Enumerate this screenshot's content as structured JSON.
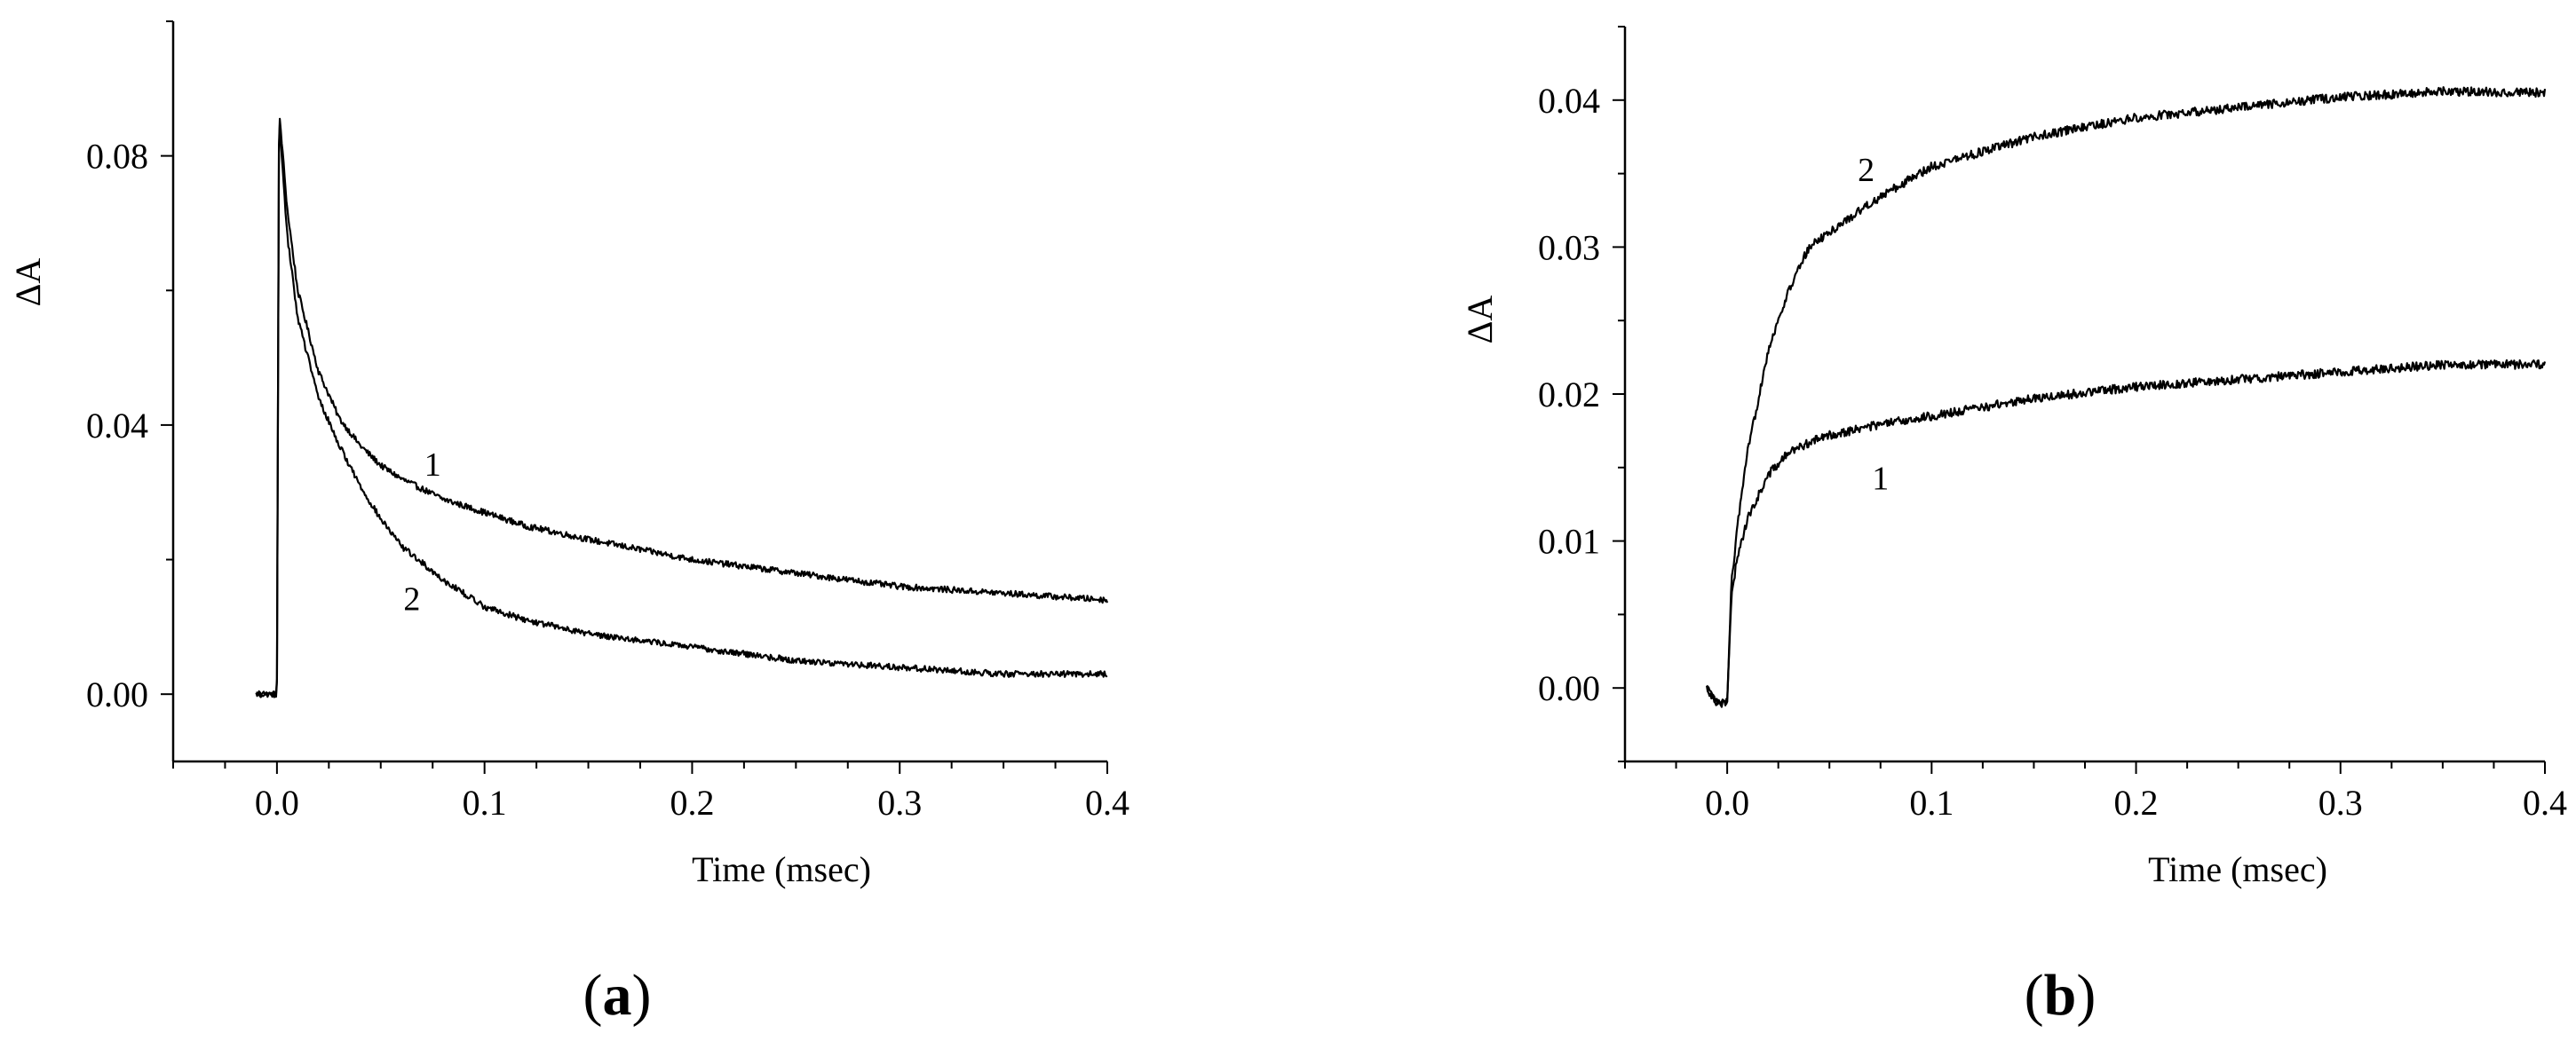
{
  "chart_data": [
    {
      "type": "line",
      "panel_label": "a",
      "xlabel": "Time (msec)",
      "ylabel": "ΔA",
      "xlim": [
        -0.05,
        0.4
      ],
      "ylim": [
        -0.01,
        0.1
      ],
      "xticks": [
        "0.0",
        "0.1",
        "0.2",
        "0.3",
        "0.4"
      ],
      "yticks": [
        "0.00",
        "0.04",
        "0.08"
      ],
      "series": [
        {
          "name": "1",
          "x": [
            -0.01,
            -0.001,
            0.0,
            0.001,
            0.005,
            0.01,
            0.02,
            0.03,
            0.04,
            0.05,
            0.06,
            0.08,
            0.1,
            0.12,
            0.15,
            0.2,
            0.25,
            0.3,
            0.35,
            0.4
          ],
          "values": [
            0.0,
            0.0,
            0.0,
            0.087,
            0.072,
            0.06,
            0.048,
            0.041,
            0.037,
            0.034,
            0.032,
            0.029,
            0.027,
            0.025,
            0.023,
            0.02,
            0.018,
            0.016,
            0.015,
            0.014
          ]
        },
        {
          "name": "2",
          "x": [
            -0.01,
            -0.001,
            0.0,
            0.001,
            0.005,
            0.01,
            0.02,
            0.03,
            0.04,
            0.05,
            0.06,
            0.08,
            0.1,
            0.12,
            0.15,
            0.2,
            0.25,
            0.3,
            0.35,
            0.4
          ],
          "values": [
            0.0,
            0.0,
            0.0,
            0.086,
            0.068,
            0.056,
            0.044,
            0.037,
            0.031,
            0.026,
            0.022,
            0.017,
            0.013,
            0.011,
            0.009,
            0.007,
            0.005,
            0.004,
            0.003,
            0.003
          ]
        }
      ]
    },
    {
      "type": "line",
      "panel_label": "b",
      "xlabel": "Time (msec)",
      "ylabel": "ΔA",
      "xlim": [
        -0.05,
        0.4
      ],
      "ylim": [
        -0.005,
        0.045
      ],
      "xticks": [
        "0.0",
        "0.1",
        "0.2",
        "0.3",
        "0.4"
      ],
      "yticks": [
        "0.00",
        "0.01",
        "0.02",
        "0.03",
        "0.04"
      ],
      "series": [
        {
          "name": "1",
          "x": [
            -0.01,
            -0.005,
            0.0,
            0.002,
            0.005,
            0.01,
            0.02,
            0.03,
            0.04,
            0.05,
            0.07,
            0.1,
            0.15,
            0.2,
            0.25,
            0.3,
            0.35,
            0.4
          ],
          "values": [
            0.0,
            -0.001,
            -0.001,
            0.006,
            0.009,
            0.0115,
            0.0145,
            0.016,
            0.0167,
            0.0172,
            0.0178,
            0.0185,
            0.0197,
            0.0205,
            0.021,
            0.0215,
            0.022,
            0.022
          ]
        },
        {
          "name": "2",
          "x": [
            -0.01,
            -0.005,
            0.0,
            0.002,
            0.005,
            0.01,
            0.02,
            0.03,
            0.04,
            0.05,
            0.07,
            0.1,
            0.15,
            0.2,
            0.25,
            0.3,
            0.35,
            0.4
          ],
          "values": [
            0.0,
            -0.001,
            -0.001,
            0.007,
            0.011,
            0.016,
            0.023,
            0.027,
            0.03,
            0.031,
            0.033,
            0.0355,
            0.0375,
            0.0388,
            0.0395,
            0.0402,
            0.0406,
            0.0405
          ]
        }
      ]
    }
  ]
}
